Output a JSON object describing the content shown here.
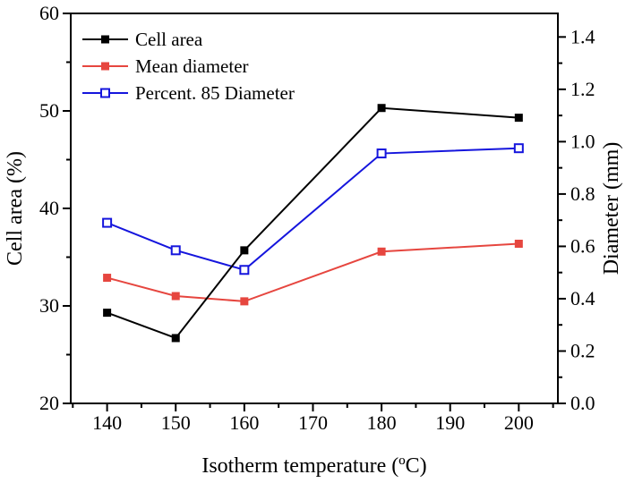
{
  "chart_data": {
    "type": "line",
    "title": "",
    "xlabel": "Isotherm temperature (ºC)",
    "ylabel_left": "Cell area (%)",
    "ylabel_right": "Diameter (mm)",
    "x": [
      140,
      150,
      160,
      180,
      200
    ],
    "series": [
      {
        "name": "Cell area",
        "axis": "left",
        "color": "#000000",
        "marker": "filled-square",
        "values": [
          29.3,
          26.7,
          35.7,
          50.3,
          49.3
        ]
      },
      {
        "name": "Mean diameter",
        "axis": "right",
        "color": "#e6463f",
        "marker": "filled-square",
        "values": [
          0.48,
          0.41,
          0.39,
          0.58,
          0.61
        ]
      },
      {
        "name": "Percent. 85 Diameter",
        "axis": "right",
        "color": "#1515dd",
        "marker": "open-square",
        "values": [
          0.69,
          0.585,
          0.51,
          0.955,
          0.975
        ]
      }
    ],
    "x_ticks": [
      140,
      150,
      160,
      170,
      180,
      190,
      200
    ],
    "x_minor_step": 5,
    "left_ticks": [
      20,
      30,
      40,
      50,
      60
    ],
    "left_minor_step": 5,
    "right_ticks": [
      0.0,
      0.2,
      0.4,
      0.6,
      0.8,
      1.0,
      1.2,
      1.4
    ],
    "right_minor_step": 0.1,
    "xlim": [
      134.7,
      205.7
    ],
    "ylim_left": [
      20,
      60
    ],
    "ylim_right": [
      0,
      1.49
    ],
    "grid": false,
    "legend_position": "top-left",
    "frame_color": "#000000",
    "draw_order": [
      1,
      2,
      0
    ]
  }
}
